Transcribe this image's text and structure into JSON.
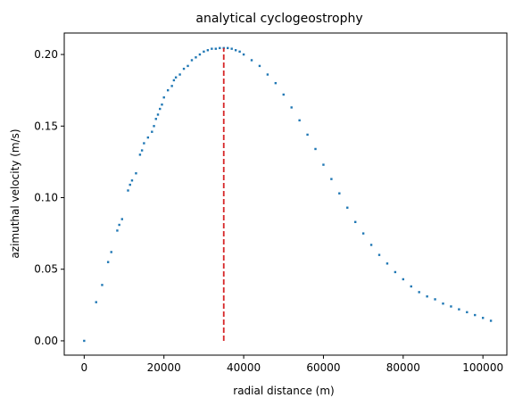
{
  "chart_data": {
    "type": "scatter",
    "title": "analytical cyclogeostrophy",
    "xlabel": "radial distance (m)",
    "ylabel": "azimuthal velocity (m/s)",
    "xlim": [
      -5000,
      106000
    ],
    "ylim": [
      -0.01,
      0.215
    ],
    "x_ticks": [
      0,
      20000,
      40000,
      60000,
      80000,
      100000
    ],
    "x_tick_labels": [
      "0",
      "20000",
      "40000",
      "60000",
      "80000",
      "100000"
    ],
    "y_ticks": [
      0.0,
      0.05,
      0.1,
      0.15,
      0.2
    ],
    "y_tick_labels": [
      "0.00",
      "0.05",
      "0.10",
      "0.15",
      "0.20"
    ],
    "grid": false,
    "series": [
      {
        "marker_color": "#1f77b4",
        "x": [
          0,
          3000,
          4500,
          6000,
          6800,
          8300,
          8800,
          9500,
          11000,
          11500,
          12000,
          13000,
          14000,
          14500,
          15000,
          16000,
          17000,
          17500,
          18000,
          18500,
          19000,
          19500,
          20000,
          21000,
          22000,
          22500,
          23000,
          24000,
          25000,
          26000,
          27000,
          28000,
          29000,
          30000,
          31000,
          32000,
          33000,
          34000,
          35000,
          36000,
          37000,
          38000,
          39000,
          40000,
          42000,
          44000,
          46000,
          48000,
          50000,
          52000,
          54000,
          56000,
          58000,
          60000,
          62000,
          64000,
          66000,
          68000,
          70000,
          72000,
          74000,
          76000,
          78000,
          80000,
          82000,
          84000,
          86000,
          88000,
          90000,
          92000,
          94000,
          96000,
          98000,
          100000,
          102000
        ],
        "y": [
          0.0,
          0.027,
          0.039,
          0.055,
          0.062,
          0.077,
          0.081,
          0.085,
          0.105,
          0.109,
          0.112,
          0.117,
          0.13,
          0.133,
          0.138,
          0.142,
          0.146,
          0.15,
          0.155,
          0.158,
          0.162,
          0.165,
          0.17,
          0.175,
          0.178,
          0.182,
          0.184,
          0.186,
          0.19,
          0.192,
          0.196,
          0.198,
          0.2,
          0.202,
          0.203,
          0.204,
          0.204,
          0.2045,
          0.2045,
          0.2045,
          0.204,
          0.203,
          0.202,
          0.2,
          0.196,
          0.192,
          0.186,
          0.18,
          0.172,
          0.163,
          0.154,
          0.144,
          0.134,
          0.123,
          0.113,
          0.103,
          0.093,
          0.083,
          0.075,
          0.067,
          0.06,
          0.054,
          0.048,
          0.043,
          0.038,
          0.034,
          0.031,
          0.029,
          0.026,
          0.024,
          0.022,
          0.02,
          0.018,
          0.016,
          0.014
        ]
      }
    ],
    "vline": {
      "x": 35000,
      "y_from": 0.0,
      "y_to": 0.2045,
      "color": "#d62728",
      "style": "dashed"
    }
  }
}
